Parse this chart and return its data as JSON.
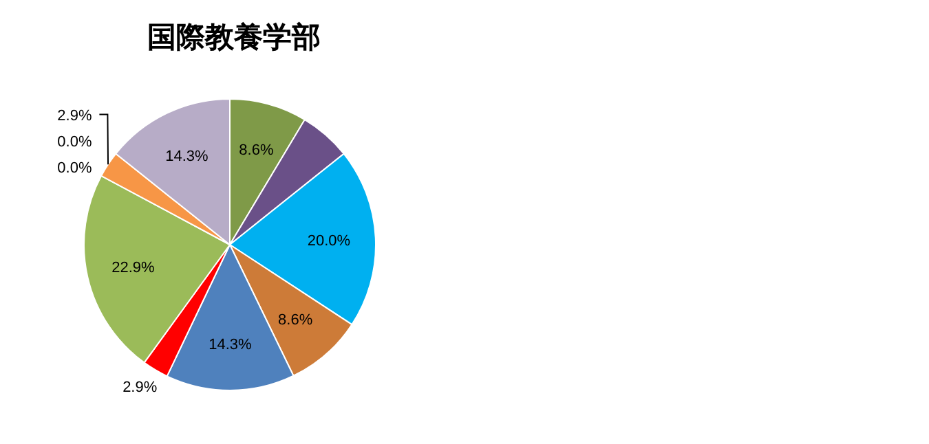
{
  "chart_data": {
    "type": "pie",
    "title": "国際教養学部",
    "categories": [
      null,
      null,
      null,
      null,
      null,
      null,
      null,
      null,
      null,
      null,
      null
    ],
    "values": [
      8.6,
      5.7,
      20.0,
      8.6,
      14.3,
      2.9,
      22.9,
      0,
      0,
      2.9,
      14.3
    ],
    "colors": [
      "#7f9a48",
      "#6a5088",
      "#00b0f0",
      "#cd7b38",
      "#4f81bd",
      "#ff0000",
      "#9bbb59",
      "#8064a2",
      "#4bacc6",
      "#f79646",
      "#b7acc7"
    ],
    "value_labels": [
      "8.6%",
      null,
      "20.0%",
      "8.6%",
      "14.3%",
      "2.9%",
      "22.9%",
      "0.0%",
      "0.0%",
      "2.9%",
      "14.3%"
    ]
  }
}
